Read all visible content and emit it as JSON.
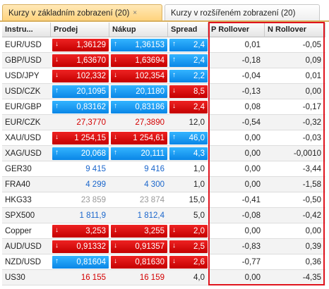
{
  "tabs": [
    {
      "label": "Kurzy v základním zobrazení (20)",
      "close": "×",
      "active": true
    },
    {
      "label": "Kurzy v rozšířeném zobrazení (20)",
      "active": false
    }
  ],
  "columns": [
    "Instru...",
    "Prodej",
    "Nákup",
    "Spread",
    "P Rollover",
    "N Rollover"
  ],
  "rows": [
    {
      "symbol": "EUR/USD",
      "sell": "1,36129",
      "sell_dir": "down",
      "buy": "1,36153",
      "buy_dir": "up",
      "spread": "2,4",
      "spread_dir": "up",
      "p_roll": "0,01",
      "n_roll": "-0,05"
    },
    {
      "symbol": "GBP/USD",
      "sell": "1,63670",
      "sell_dir": "down",
      "buy": "1,63694",
      "buy_dir": "down",
      "spread": "2,4",
      "spread_dir": "up",
      "p_roll": "-0,18",
      "n_roll": "0,09"
    },
    {
      "symbol": "USD/JPY",
      "sell": "102,332",
      "sell_dir": "down",
      "buy": "102,354",
      "buy_dir": "down",
      "spread": "2,2",
      "spread_dir": "up",
      "p_roll": "-0,04",
      "n_roll": "0,01"
    },
    {
      "symbol": "USD/CZK",
      "sell": "20,1095",
      "sell_dir": "up",
      "buy": "20,1180",
      "buy_dir": "up",
      "spread": "8,5",
      "spread_dir": "down",
      "p_roll": "-0,13",
      "n_roll": "0,00"
    },
    {
      "symbol": "EUR/GBP",
      "sell": "0,83162",
      "sell_dir": "up",
      "buy": "0,83186",
      "buy_dir": "up",
      "spread": "2,4",
      "spread_dir": "down",
      "p_roll": "0,08",
      "n_roll": "-0,17"
    },
    {
      "symbol": "EUR/CZK",
      "sell": "27,3770",
      "sell_dir": "red",
      "buy": "27,3890",
      "buy_dir": "red",
      "spread": "12,0",
      "spread_dir": "plain",
      "p_roll": "-0,54",
      "n_roll": "-0,32"
    },
    {
      "symbol": "XAU/USD",
      "sell": "1 254,15",
      "sell_dir": "down",
      "buy": "1 254,61",
      "buy_dir": "down",
      "spread": "46,0",
      "spread_dir": "up",
      "p_roll": "0,00",
      "n_roll": "-0,03"
    },
    {
      "symbol": "XAG/USD",
      "sell": "20,068",
      "sell_dir": "up",
      "buy": "20,111",
      "buy_dir": "up",
      "spread": "4,3",
      "spread_dir": "up",
      "p_roll": "0,00",
      "n_roll": "-0,0010"
    },
    {
      "symbol": "GER30",
      "sell": "9 415",
      "sell_dir": "blue",
      "buy": "9 416",
      "buy_dir": "blue",
      "spread": "1,0",
      "spread_dir": "plain",
      "p_roll": "0,00",
      "n_roll": "-3,44"
    },
    {
      "symbol": "FRA40",
      "sell": "4 299",
      "sell_dir": "blue",
      "buy": "4 300",
      "buy_dir": "blue",
      "spread": "1,0",
      "spread_dir": "plain",
      "p_roll": "0,00",
      "n_roll": "-1,58"
    },
    {
      "symbol": "HKG33",
      "sell": "23 859",
      "sell_dir": "gray",
      "buy": "23 874",
      "buy_dir": "gray",
      "spread": "15,0",
      "spread_dir": "plain",
      "p_roll": "-0,41",
      "n_roll": "-0,50"
    },
    {
      "symbol": "SPX500",
      "sell": "1 811,9",
      "sell_dir": "blue",
      "buy": "1 812,4",
      "buy_dir": "blue",
      "spread": "5,0",
      "spread_dir": "plain",
      "p_roll": "-0,08",
      "n_roll": "-0,42"
    },
    {
      "symbol": "Copper",
      "sell": "3,253",
      "sell_dir": "down",
      "buy": "3,255",
      "buy_dir": "down",
      "spread": "2,0",
      "spread_dir": "down",
      "p_roll": "0,00",
      "n_roll": "0,00"
    },
    {
      "symbol": "AUD/USD",
      "sell": "0,91332",
      "sell_dir": "down",
      "buy": "0,91357",
      "buy_dir": "down",
      "spread": "2,5",
      "spread_dir": "down",
      "p_roll": "-0,83",
      "n_roll": "0,39"
    },
    {
      "symbol": "NZD/USD",
      "sell": "0,81604",
      "sell_dir": "up",
      "buy": "0,81630",
      "buy_dir": "down",
      "spread": "2,6",
      "spread_dir": "down",
      "p_roll": "-0,77",
      "n_roll": "0,36"
    },
    {
      "symbol": "US30",
      "sell": "16 155",
      "sell_dir": "red",
      "buy": "16 159",
      "buy_dir": "red",
      "spread": "4,0",
      "spread_dir": "plain",
      "p_roll": "0,00",
      "n_roll": "-4,35"
    }
  ],
  "colors": {
    "down": "#d40000",
    "up": "#0a86e6",
    "highlight": "#e0141e",
    "active_tab": "#ffd27a"
  },
  "icons": {
    "down": "down-arrow-icon",
    "up": "up-arrow-icon"
  }
}
